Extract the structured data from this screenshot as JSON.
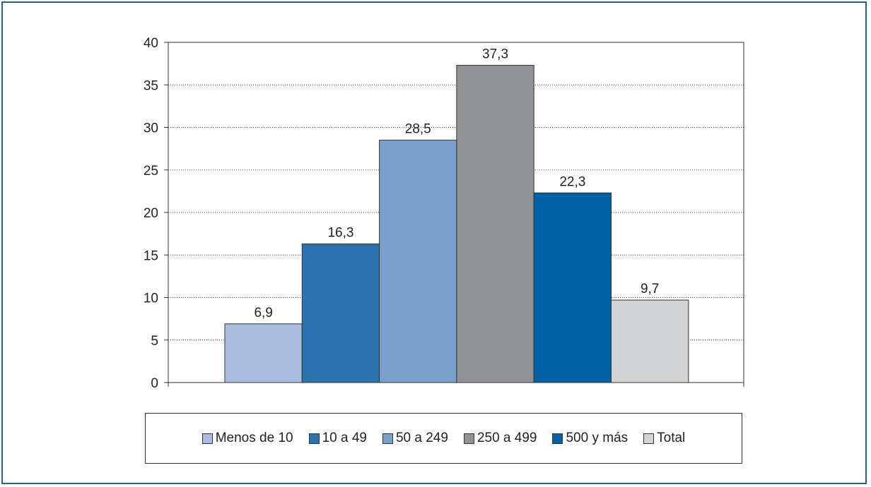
{
  "chart_data": {
    "type": "bar",
    "categories": [
      "Menos de 10",
      "10 a 49",
      "50 a 249",
      "250 a 499",
      "500 y más",
      "Total"
    ],
    "values": [
      6.9,
      16.3,
      28.5,
      37.3,
      22.3,
      9.7
    ],
    "value_labels": [
      "6,9",
      "16,3",
      "28,5",
      "37,3",
      "22,3",
      "9,7"
    ],
    "colors": [
      "#a8bddf",
      "#2a73ae",
      "#7ba0cb",
      "#909296",
      "#0062a5",
      "#d2d3d5"
    ],
    "title": "",
    "xlabel": "",
    "ylabel": "",
    "ylim": [
      0,
      40
    ],
    "yticks": [
      0,
      5,
      10,
      15,
      20,
      25,
      30,
      35,
      40
    ],
    "grid": true,
    "legend_position": "bottom"
  }
}
